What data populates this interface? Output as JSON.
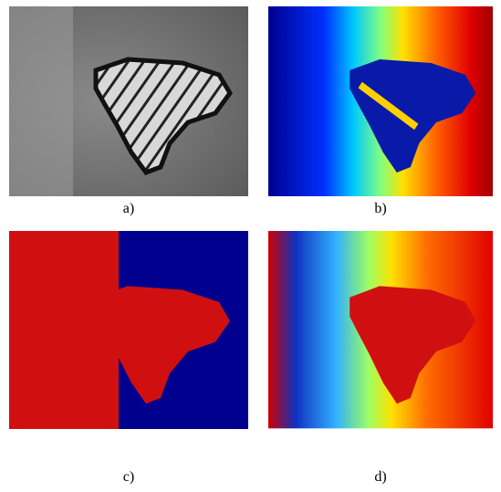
{
  "figure": {
    "panels": [
      {
        "caption": "a)"
      },
      {
        "caption": "b)"
      },
      {
        "caption": "c)"
      },
      {
        "caption": "d)"
      }
    ]
  }
}
